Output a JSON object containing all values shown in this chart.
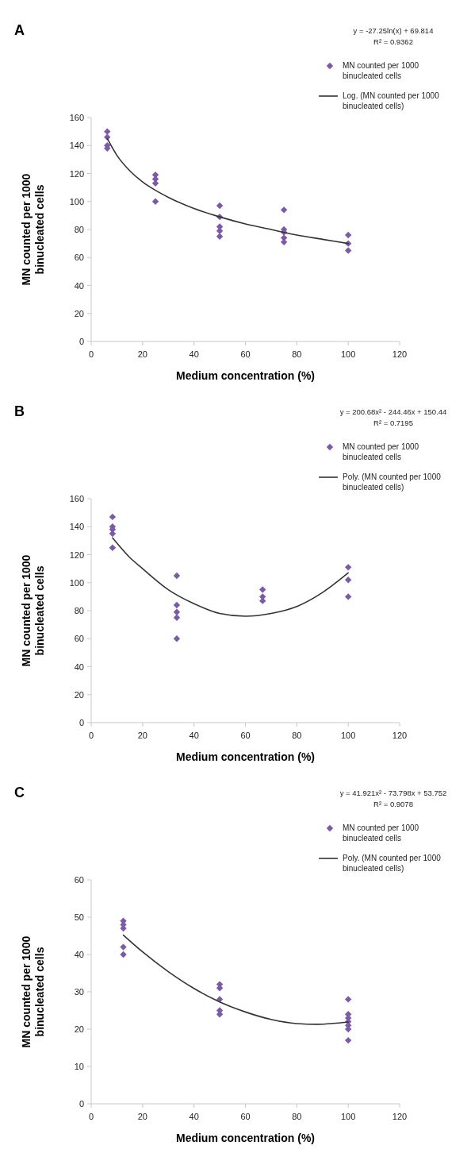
{
  "chart_data": [
    {
      "type": "scatter",
      "title": "A",
      "xlabel": "Medium concentration (%)",
      "ylabel": "MN counted per 1000 binucleated cells",
      "xlim": [
        0,
        120
      ],
      "xticks": [
        0,
        20,
        40,
        60,
        80,
        100,
        120
      ],
      "ylim": [
        0,
        160
      ],
      "yticks": [
        0,
        20,
        40,
        60,
        80,
        100,
        120,
        140,
        160
      ],
      "legend": "top right",
      "annotations": [
        "y = -27.25ln(x) + 69.814",
        "R² = 0.9362"
      ],
      "series": [
        {
          "name": "MN counted per 1000 binucleated cells",
          "type": "scatter",
          "marker": "diamond",
          "color": "#7b5aa6",
          "x": [
            6.25,
            6.25,
            6.25,
            6.25,
            25,
            25,
            25,
            25,
            50,
            50,
            50,
            50,
            50,
            75,
            75,
            75,
            75,
            75,
            100,
            100,
            100
          ],
          "values": [
            150,
            146,
            140,
            138,
            119,
            116,
            113,
            100,
            97,
            89,
            82,
            79,
            75,
            94,
            80,
            78,
            74,
            71,
            76,
            70,
            65
          ]
        },
        {
          "name": "Log. (MN counted per 1000 binucleated cells)",
          "type": "line",
          "marker": "none",
          "color": "#333333",
          "x": [
            6.25,
            10,
            15,
            20,
            25,
            30,
            40,
            50,
            60,
            70,
            80,
            90,
            100
          ],
          "values": [
            145,
            133,
            122,
            114,
            108,
            103,
            95,
            89,
            84,
            80,
            76,
            73,
            70
          ]
        }
      ]
    },
    {
      "type": "scatter",
      "title": "B",
      "xlabel": "Medium concentration (%)",
      "ylabel": "MN counted per 1000 binucleated cells",
      "xlim": [
        0,
        120
      ],
      "xticks": [
        0,
        20,
        40,
        60,
        80,
        100,
        120
      ],
      "ylim": [
        0,
        160
      ],
      "yticks": [
        0,
        20,
        40,
        60,
        80,
        100,
        120,
        140,
        160
      ],
      "legend": "top right",
      "annotations": [
        "y = 200.68x² - 244.46x + 150.44",
        "R² = 0.7195"
      ],
      "series": [
        {
          "name": "MN counted per 1000 binucleated cells",
          "type": "scatter",
          "marker": "diamond",
          "color": "#7b5aa6",
          "x": [
            8.3,
            8.3,
            8.3,
            8.3,
            8.3,
            33.3,
            33.3,
            33.3,
            33.3,
            33.3,
            66.7,
            66.7,
            66.7,
            100,
            100,
            100
          ],
          "values": [
            147,
            140,
            138,
            135,
            125,
            105,
            84,
            79,
            75,
            60,
            95,
            90,
            87,
            111,
            102,
            90
          ]
        },
        {
          "name": "Poly. (MN counted per 1000 binucleated cells)",
          "type": "line",
          "marker": "none",
          "color": "#333333",
          "x": [
            8.3,
            15,
            20,
            30,
            40,
            50,
            60,
            70,
            80,
            90,
            100
          ],
          "values": [
            132,
            118,
            110,
            95,
            85,
            78,
            76,
            78,
            83,
            93,
            107
          ]
        }
      ]
    },
    {
      "type": "scatter",
      "title": "C",
      "xlabel": "Medium concentration (%)",
      "ylabel": "MN counted per 1000 binucleated cells",
      "xlim": [
        0,
        120
      ],
      "xticks": [
        0,
        20,
        40,
        60,
        80,
        100,
        120
      ],
      "ylim": [
        0,
        60
      ],
      "yticks": [
        0,
        10,
        20,
        30,
        40,
        50,
        60
      ],
      "legend": "top right",
      "annotations": [
        "y = 41.921x² - 73.798x + 53.752",
        "R² = 0.9078"
      ],
      "series": [
        {
          "name": "MN counted per 1000 binucleated cells",
          "type": "scatter",
          "marker": "diamond",
          "color": "#7b5aa6",
          "x": [
            12.5,
            12.5,
            12.5,
            12.5,
            12.5,
            50,
            50,
            50,
            50,
            50,
            100,
            100,
            100,
            100,
            100,
            100,
            100
          ],
          "values": [
            49,
            48,
            47,
            42,
            40,
            32,
            31,
            28,
            25,
            24,
            28,
            24,
            23,
            22,
            21,
            20,
            17
          ]
        },
        {
          "name": "Poly. (MN counted per 1000 binucleated cells)",
          "type": "line",
          "marker": "none",
          "color": "#333333",
          "x": [
            12.5,
            20,
            30,
            40,
            50,
            60,
            70,
            80,
            88,
            100
          ],
          "values": [
            45.2,
            40.7,
            35.4,
            30.9,
            27.3,
            24.6,
            22.6,
            21.5,
            21.3,
            21.9
          ]
        }
      ]
    }
  ]
}
